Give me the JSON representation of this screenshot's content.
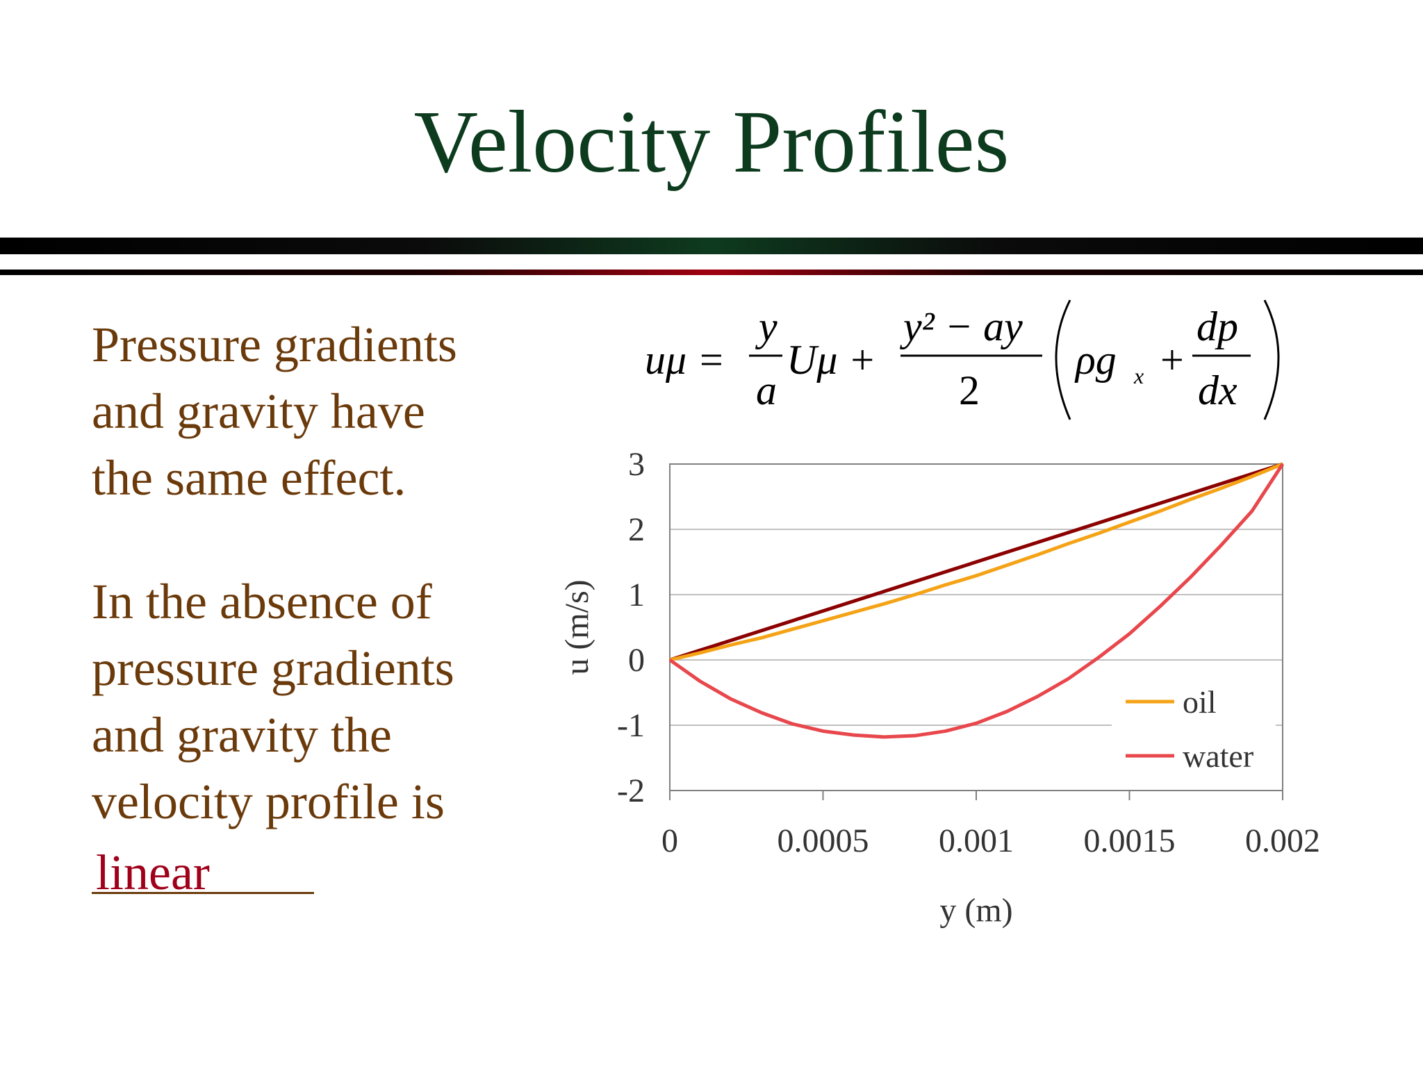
{
  "slide": {
    "title": "Velocity Profiles",
    "paragraph1": [
      "Pressure gradients",
      "and gravity have",
      "the same effect."
    ],
    "paragraph2": [
      "In the absence of",
      "pressure gradients",
      "and gravity the",
      "velocity profile is"
    ],
    "answer": "linear"
  },
  "equation": {
    "lhs": "uμ =",
    "frac1_num": "y",
    "frac1_den": "a",
    "term1": "Uμ +",
    "frac2_num": "y² − ay",
    "frac2_den": "2",
    "paren_term": "ρg",
    "subscript": "x",
    "plus": "+",
    "frac3_num": "dp",
    "frac3_den": "dx"
  },
  "colors": {
    "title": "#0d3b1e",
    "body_text": "#6b3a0b",
    "answer": "#a0001a",
    "linear_series": "#8b0000",
    "oil_series": "#f5a316",
    "water_series": "#e8474c",
    "gridline": "#c0c0c0"
  },
  "chart_data": {
    "type": "line",
    "xlabel": "y (m)",
    "ylabel": "u (m/s)",
    "xlim": [
      0,
      0.002
    ],
    "ylim": [
      -2,
      3
    ],
    "xticks": [
      "0",
      "0.0005",
      "0.001",
      "0.0015",
      "0.002"
    ],
    "xtick_values": [
      0,
      0.0005,
      0.001,
      0.0015,
      0.002
    ],
    "yticks": [
      "3",
      "2",
      "1",
      "0",
      "-1",
      "-2"
    ],
    "ytick_values": [
      3,
      2,
      1,
      0,
      -1,
      -2
    ],
    "grid": "horizontal",
    "legend_position": "bottom-right",
    "series": [
      {
        "color": "#8b0000",
        "x": [
          0,
          0.002
        ],
        "y": [
          0,
          3
        ]
      },
      {
        "name": "oil",
        "color": "#f5a316",
        "x": [
          0,
          0.0001,
          0.0002,
          0.0003,
          0.0004,
          0.0005,
          0.0006,
          0.0007,
          0.0008,
          0.0009,
          0.001,
          0.0011,
          0.0012,
          0.0013,
          0.0014,
          0.0015,
          0.0016,
          0.0017,
          0.0018,
          0.0019,
          0.002
        ],
        "y": [
          0,
          0.11,
          0.23,
          0.34,
          0.47,
          0.6,
          0.73,
          0.86,
          1.0,
          1.15,
          1.29,
          1.45,
          1.61,
          1.78,
          1.94,
          2.11,
          2.28,
          2.46,
          2.63,
          2.81,
          3.0
        ]
      },
      {
        "name": "water",
        "color": "#e8474c",
        "x": [
          0,
          0.0001,
          0.0002,
          0.0003,
          0.0004,
          0.0005,
          0.0006,
          0.0007,
          0.0008,
          0.0009,
          0.001,
          0.0011,
          0.0012,
          0.0013,
          0.0014,
          0.0015,
          0.0016,
          0.0017,
          0.0018,
          0.0019,
          0.002
        ],
        "y": [
          0,
          -0.33,
          -0.6,
          -0.81,
          -0.98,
          -1.09,
          -1.15,
          -1.18,
          -1.16,
          -1.09,
          -0.97,
          -0.79,
          -0.56,
          -0.29,
          0.04,
          0.4,
          0.82,
          1.27,
          1.76,
          2.28,
          3.0
        ]
      }
    ]
  }
}
